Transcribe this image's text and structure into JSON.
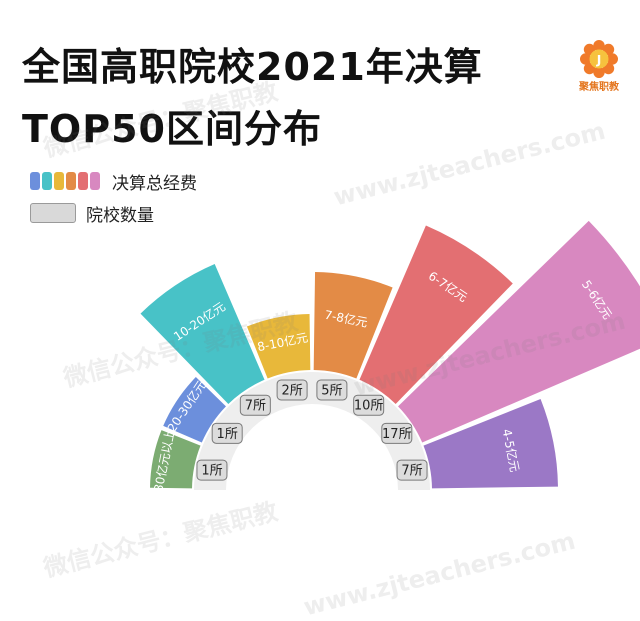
{
  "header": {
    "title_line1": "全国高职院校2021年决算",
    "title_line2": "TOP50区间分布"
  },
  "logo": {
    "text": "聚焦职教",
    "glyph": "J"
  },
  "legend": {
    "budget_label": "决算总经费",
    "count_label": "院校数量",
    "swatch_colors": [
      "#6c8fdc",
      "#48c2c7",
      "#e8b83a",
      "#e38b46",
      "#e36f72",
      "#d888c0"
    ]
  },
  "chart_data": {
    "type": "polar-bar",
    "title": "全国高职院校2021年决算 TOP50区间分布",
    "categories": [
      "30亿元以上",
      "20-30亿元",
      "10-20亿元",
      "8-10亿元",
      "7-8亿元",
      "6-7亿元",
      "5-6亿元",
      "4-5亿元"
    ],
    "values": [
      1,
      1,
      7,
      2,
      5,
      10,
      17,
      7
    ],
    "value_labels": [
      "1所",
      "1所",
      "7所",
      "2所",
      "5所",
      "10所",
      "17所",
      "7所"
    ],
    "series": [
      {
        "name": "院校数量",
        "values": [
          1,
          1,
          7,
          2,
          5,
          10,
          17,
          7
        ]
      }
    ],
    "colors": [
      "#7cac72",
      "#6c8fdc",
      "#48c2c7",
      "#e8b83a",
      "#e38b46",
      "#e36f72",
      "#d888c0",
      "#9b78c6"
    ]
  },
  "watermarks": [
    "微信公众号：聚焦职教",
    "www.zjteachers.com",
    "微信公众号：聚焦职教",
    "www.zjteachers.com",
    "微信公众号：聚焦职教",
    "www.zjteachers.com"
  ]
}
